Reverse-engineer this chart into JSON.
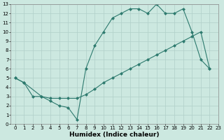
{
  "line1_x": [
    0,
    1,
    3,
    4,
    5,
    6,
    7,
    8,
    9,
    10,
    11,
    12,
    13,
    14,
    15,
    16,
    17,
    18,
    19,
    20,
    21,
    22
  ],
  "line1_y": [
    5.0,
    4.5,
    3.0,
    2.5,
    2.0,
    1.8,
    0.5,
    6.0,
    8.5,
    10.0,
    11.5,
    12.0,
    12.5,
    12.5,
    12.0,
    13.0,
    12.0,
    12.0,
    12.5,
    10.0,
    7.0,
    6.0
  ],
  "line2_x": [
    0,
    1,
    2,
    3,
    4,
    5,
    6,
    7,
    8,
    9,
    10,
    11,
    12,
    13,
    14,
    15,
    16,
    17,
    18,
    19,
    20,
    21,
    22
  ],
  "line2_y": [
    5.0,
    4.5,
    3.0,
    3.0,
    2.8,
    2.8,
    2.8,
    2.8,
    3.2,
    3.8,
    4.5,
    5.0,
    5.5,
    6.0,
    6.5,
    7.0,
    7.5,
    8.0,
    8.5,
    9.0,
    9.5,
    10.0,
    6.0
  ],
  "line_color": "#2d7a6e",
  "bg_color": "#cce8e0",
  "grid_color": "#b0cfc8",
  "xlabel": "Humidex (Indice chaleur)",
  "xlim": [
    -0.5,
    23
  ],
  "ylim": [
    0,
    13
  ],
  "xticks": [
    0,
    1,
    2,
    3,
    4,
    5,
    6,
    7,
    8,
    9,
    10,
    11,
    12,
    13,
    14,
    15,
    16,
    17,
    18,
    19,
    20,
    21,
    22,
    23
  ],
  "yticks": [
    0,
    1,
    2,
    3,
    4,
    5,
    6,
    7,
    8,
    9,
    10,
    11,
    12,
    13
  ],
  "marker": "D",
  "markersize": 2.0,
  "linewidth": 0.8,
  "xlabel_fontsize": 6.5,
  "tick_fontsize": 5.0
}
